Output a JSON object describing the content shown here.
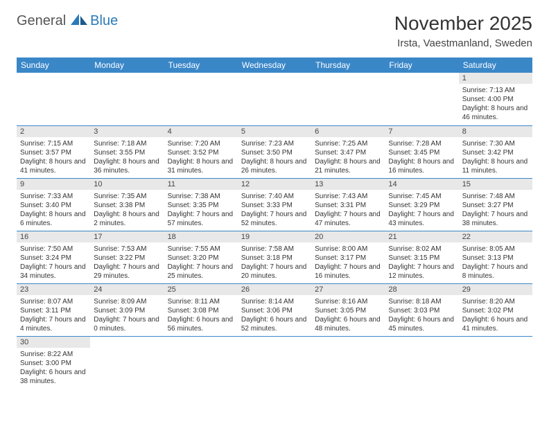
{
  "logo": {
    "general": "General",
    "blue": "Blue"
  },
  "title": "November 2025",
  "location": "Irsta, Vaestmanland, Sweden",
  "colors": {
    "header_bg": "#3a87c8",
    "header_text": "#ffffff",
    "daynum_bg": "#e8e8e8",
    "row_border": "#3a87c8",
    "logo_blue": "#2a7ab8"
  },
  "weekdays": [
    "Sunday",
    "Monday",
    "Tuesday",
    "Wednesday",
    "Thursday",
    "Friday",
    "Saturday"
  ],
  "weeks": [
    [
      {
        "n": "",
        "sr": "",
        "ss": "",
        "dl": ""
      },
      {
        "n": "",
        "sr": "",
        "ss": "",
        "dl": ""
      },
      {
        "n": "",
        "sr": "",
        "ss": "",
        "dl": ""
      },
      {
        "n": "",
        "sr": "",
        "ss": "",
        "dl": ""
      },
      {
        "n": "",
        "sr": "",
        "ss": "",
        "dl": ""
      },
      {
        "n": "",
        "sr": "",
        "ss": "",
        "dl": ""
      },
      {
        "n": "1",
        "sr": "Sunrise: 7:13 AM",
        "ss": "Sunset: 4:00 PM",
        "dl": "Daylight: 8 hours and 46 minutes."
      }
    ],
    [
      {
        "n": "2",
        "sr": "Sunrise: 7:15 AM",
        "ss": "Sunset: 3:57 PM",
        "dl": "Daylight: 8 hours and 41 minutes."
      },
      {
        "n": "3",
        "sr": "Sunrise: 7:18 AM",
        "ss": "Sunset: 3:55 PM",
        "dl": "Daylight: 8 hours and 36 minutes."
      },
      {
        "n": "4",
        "sr": "Sunrise: 7:20 AM",
        "ss": "Sunset: 3:52 PM",
        "dl": "Daylight: 8 hours and 31 minutes."
      },
      {
        "n": "5",
        "sr": "Sunrise: 7:23 AM",
        "ss": "Sunset: 3:50 PM",
        "dl": "Daylight: 8 hours and 26 minutes."
      },
      {
        "n": "6",
        "sr": "Sunrise: 7:25 AM",
        "ss": "Sunset: 3:47 PM",
        "dl": "Daylight: 8 hours and 21 minutes."
      },
      {
        "n": "7",
        "sr": "Sunrise: 7:28 AM",
        "ss": "Sunset: 3:45 PM",
        "dl": "Daylight: 8 hours and 16 minutes."
      },
      {
        "n": "8",
        "sr": "Sunrise: 7:30 AM",
        "ss": "Sunset: 3:42 PM",
        "dl": "Daylight: 8 hours and 11 minutes."
      }
    ],
    [
      {
        "n": "9",
        "sr": "Sunrise: 7:33 AM",
        "ss": "Sunset: 3:40 PM",
        "dl": "Daylight: 8 hours and 6 minutes."
      },
      {
        "n": "10",
        "sr": "Sunrise: 7:35 AM",
        "ss": "Sunset: 3:38 PM",
        "dl": "Daylight: 8 hours and 2 minutes."
      },
      {
        "n": "11",
        "sr": "Sunrise: 7:38 AM",
        "ss": "Sunset: 3:35 PM",
        "dl": "Daylight: 7 hours and 57 minutes."
      },
      {
        "n": "12",
        "sr": "Sunrise: 7:40 AM",
        "ss": "Sunset: 3:33 PM",
        "dl": "Daylight: 7 hours and 52 minutes."
      },
      {
        "n": "13",
        "sr": "Sunrise: 7:43 AM",
        "ss": "Sunset: 3:31 PM",
        "dl": "Daylight: 7 hours and 47 minutes."
      },
      {
        "n": "14",
        "sr": "Sunrise: 7:45 AM",
        "ss": "Sunset: 3:29 PM",
        "dl": "Daylight: 7 hours and 43 minutes."
      },
      {
        "n": "15",
        "sr": "Sunrise: 7:48 AM",
        "ss": "Sunset: 3:27 PM",
        "dl": "Daylight: 7 hours and 38 minutes."
      }
    ],
    [
      {
        "n": "16",
        "sr": "Sunrise: 7:50 AM",
        "ss": "Sunset: 3:24 PM",
        "dl": "Daylight: 7 hours and 34 minutes."
      },
      {
        "n": "17",
        "sr": "Sunrise: 7:53 AM",
        "ss": "Sunset: 3:22 PM",
        "dl": "Daylight: 7 hours and 29 minutes."
      },
      {
        "n": "18",
        "sr": "Sunrise: 7:55 AM",
        "ss": "Sunset: 3:20 PM",
        "dl": "Daylight: 7 hours and 25 minutes."
      },
      {
        "n": "19",
        "sr": "Sunrise: 7:58 AM",
        "ss": "Sunset: 3:18 PM",
        "dl": "Daylight: 7 hours and 20 minutes."
      },
      {
        "n": "20",
        "sr": "Sunrise: 8:00 AM",
        "ss": "Sunset: 3:17 PM",
        "dl": "Daylight: 7 hours and 16 minutes."
      },
      {
        "n": "21",
        "sr": "Sunrise: 8:02 AM",
        "ss": "Sunset: 3:15 PM",
        "dl": "Daylight: 7 hours and 12 minutes."
      },
      {
        "n": "22",
        "sr": "Sunrise: 8:05 AM",
        "ss": "Sunset: 3:13 PM",
        "dl": "Daylight: 7 hours and 8 minutes."
      }
    ],
    [
      {
        "n": "23",
        "sr": "Sunrise: 8:07 AM",
        "ss": "Sunset: 3:11 PM",
        "dl": "Daylight: 7 hours and 4 minutes."
      },
      {
        "n": "24",
        "sr": "Sunrise: 8:09 AM",
        "ss": "Sunset: 3:09 PM",
        "dl": "Daylight: 7 hours and 0 minutes."
      },
      {
        "n": "25",
        "sr": "Sunrise: 8:11 AM",
        "ss": "Sunset: 3:08 PM",
        "dl": "Daylight: 6 hours and 56 minutes."
      },
      {
        "n": "26",
        "sr": "Sunrise: 8:14 AM",
        "ss": "Sunset: 3:06 PM",
        "dl": "Daylight: 6 hours and 52 minutes."
      },
      {
        "n": "27",
        "sr": "Sunrise: 8:16 AM",
        "ss": "Sunset: 3:05 PM",
        "dl": "Daylight: 6 hours and 48 minutes."
      },
      {
        "n": "28",
        "sr": "Sunrise: 8:18 AM",
        "ss": "Sunset: 3:03 PM",
        "dl": "Daylight: 6 hours and 45 minutes."
      },
      {
        "n": "29",
        "sr": "Sunrise: 8:20 AM",
        "ss": "Sunset: 3:02 PM",
        "dl": "Daylight: 6 hours and 41 minutes."
      }
    ],
    [
      {
        "n": "30",
        "sr": "Sunrise: 8:22 AM",
        "ss": "Sunset: 3:00 PM",
        "dl": "Daylight: 6 hours and 38 minutes."
      },
      {
        "n": "",
        "sr": "",
        "ss": "",
        "dl": ""
      },
      {
        "n": "",
        "sr": "",
        "ss": "",
        "dl": ""
      },
      {
        "n": "",
        "sr": "",
        "ss": "",
        "dl": ""
      },
      {
        "n": "",
        "sr": "",
        "ss": "",
        "dl": ""
      },
      {
        "n": "",
        "sr": "",
        "ss": "",
        "dl": ""
      },
      {
        "n": "",
        "sr": "",
        "ss": "",
        "dl": ""
      }
    ]
  ]
}
